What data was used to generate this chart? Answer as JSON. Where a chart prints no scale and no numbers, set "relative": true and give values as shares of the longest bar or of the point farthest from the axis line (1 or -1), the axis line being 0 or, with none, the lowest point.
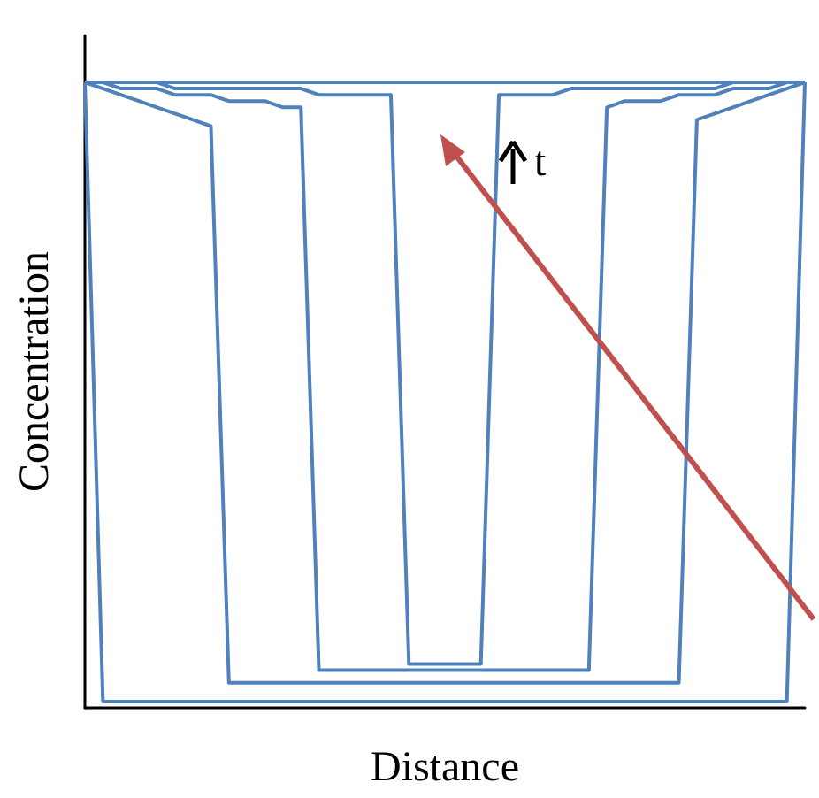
{
  "chart_data": {
    "type": "line",
    "relative": true,
    "xlabel": "Distance",
    "ylabel": "Concentration",
    "marker": "none",
    "annotations": [
      "t"
    ],
    "categories": [
      null,
      null,
      null,
      null,
      null,
      null,
      null,
      null,
      null,
      null,
      null,
      null,
      null,
      null,
      null,
      null,
      null,
      null,
      null,
      null,
      null,
      null,
      null,
      null,
      null,
      null,
      null,
      null,
      null,
      null,
      null,
      null,
      null,
      null,
      null,
      null,
      null,
      null,
      null,
      null,
      null
    ],
    "series": [
      {
        "color": "#4f81bd",
        "values": [
          1,
          0.01,
          0.01,
          0.01,
          0.01,
          0.01,
          0.01,
          0.01,
          0.01,
          0.01,
          0.01,
          0.01,
          0.01,
          0.01,
          0.01,
          0.01,
          0.01,
          0.01,
          0.01,
          0.01,
          0.01,
          0.01,
          0.01,
          0.01,
          0.01,
          0.01,
          0.01,
          0.01,
          0.01,
          0.01,
          0.01,
          0.01,
          0.01,
          0.01,
          0.01,
          0.01,
          0.01,
          0.01,
          0.01,
          0.01,
          1
        ]
      },
      {
        "color": "#4f81bd",
        "values": [
          1,
          0.99,
          0.98,
          0.97,
          0.96,
          0.95,
          0.94,
          0.93,
          0.04,
          0.04,
          0.04,
          0.04,
          0.04,
          0.04,
          0.04,
          0.04,
          0.04,
          0.04,
          0.04,
          0.04,
          0.04,
          0.04,
          0.04,
          0.04,
          0.04,
          0.04,
          0.04,
          0.04,
          0.04,
          0.04,
          0.04,
          0.04,
          0.04,
          0.04,
          0.94,
          0.95,
          0.96,
          0.97,
          0.98,
          0.99,
          1
        ]
      },
      {
        "color": "#4f81bd",
        "values": [
          1,
          1,
          0.99,
          0.99,
          0.99,
          0.98,
          0.98,
          0.98,
          0.97,
          0.97,
          0.97,
          0.96,
          0.96,
          0.06,
          0.06,
          0.06,
          0.06,
          0.06,
          0.06,
          0.06,
          0.06,
          0.06,
          0.06,
          0.06,
          0.06,
          0.06,
          0.06,
          0.06,
          0.06,
          0.96,
          0.97,
          0.97,
          0.97,
          0.98,
          0.98,
          0.98,
          0.99,
          0.99,
          0.99,
          1,
          1
        ]
      },
      {
        "color": "#4f81bd",
        "values": [
          1,
          1,
          1,
          1,
          1,
          0.99,
          0.99,
          0.99,
          0.99,
          0.99,
          0.99,
          0.99,
          0.99,
          0.98,
          0.98,
          0.98,
          0.98,
          0.98,
          0.07,
          0.07,
          0.07,
          0.07,
          0.07,
          0.98,
          0.98,
          0.98,
          0.98,
          0.99,
          0.99,
          0.99,
          0.99,
          0.99,
          0.99,
          0.99,
          0.99,
          0.99,
          1,
          1,
          1,
          1,
          1
        ]
      },
      {
        "color": "#4f81bd",
        "values": [
          1,
          1,
          1,
          1,
          1,
          1,
          1,
          1,
          1,
          1,
          1,
          1,
          1,
          1,
          1,
          1,
          1,
          1,
          1,
          1,
          1,
          1,
          1,
          1,
          1,
          1,
          1,
          1,
          1,
          1,
          1,
          1,
          1,
          1,
          1,
          1,
          1,
          1,
          1,
          1,
          1
        ]
      }
    ]
  }
}
